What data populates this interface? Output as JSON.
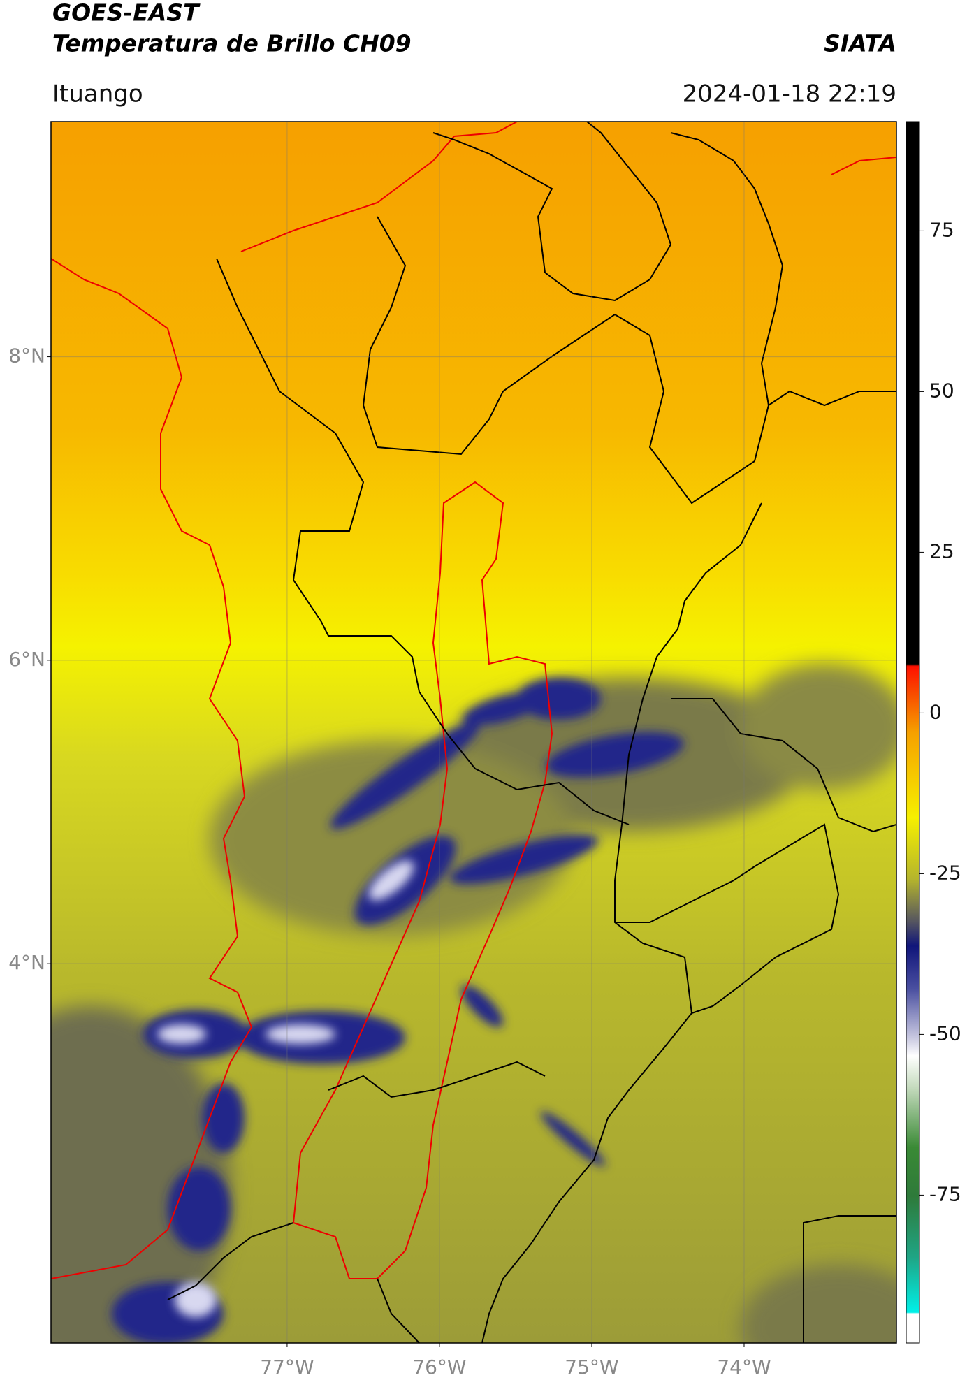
{
  "header": {
    "title": "GOES-EAST",
    "subtitle": "Temperatura de Brillo CH09",
    "source": "SIATA",
    "location": "Ituango",
    "datetime": "2024-01-18 22:19"
  },
  "chart_data": {
    "type": "map",
    "xlim": [
      -78.55,
      -73.0
    ],
    "ylim": [
      1.5,
      9.55
    ],
    "xticks": [
      {
        "value": -77,
        "label": "77°W"
      },
      {
        "value": -76,
        "label": "76°W"
      },
      {
        "value": -75,
        "label": "75°W"
      },
      {
        "value": -74,
        "label": "74°W"
      }
    ],
    "yticks": [
      {
        "value": 4,
        "label": "4°N"
      },
      {
        "value": 6,
        "label": "6°N"
      },
      {
        "value": 8,
        "label": "8°N"
      }
    ],
    "grid": true,
    "colorbar": {
      "lim": [
        -98,
        92
      ],
      "ticks": [
        75,
        50,
        25,
        0,
        -25,
        -50,
        -75
      ]
    }
  }
}
